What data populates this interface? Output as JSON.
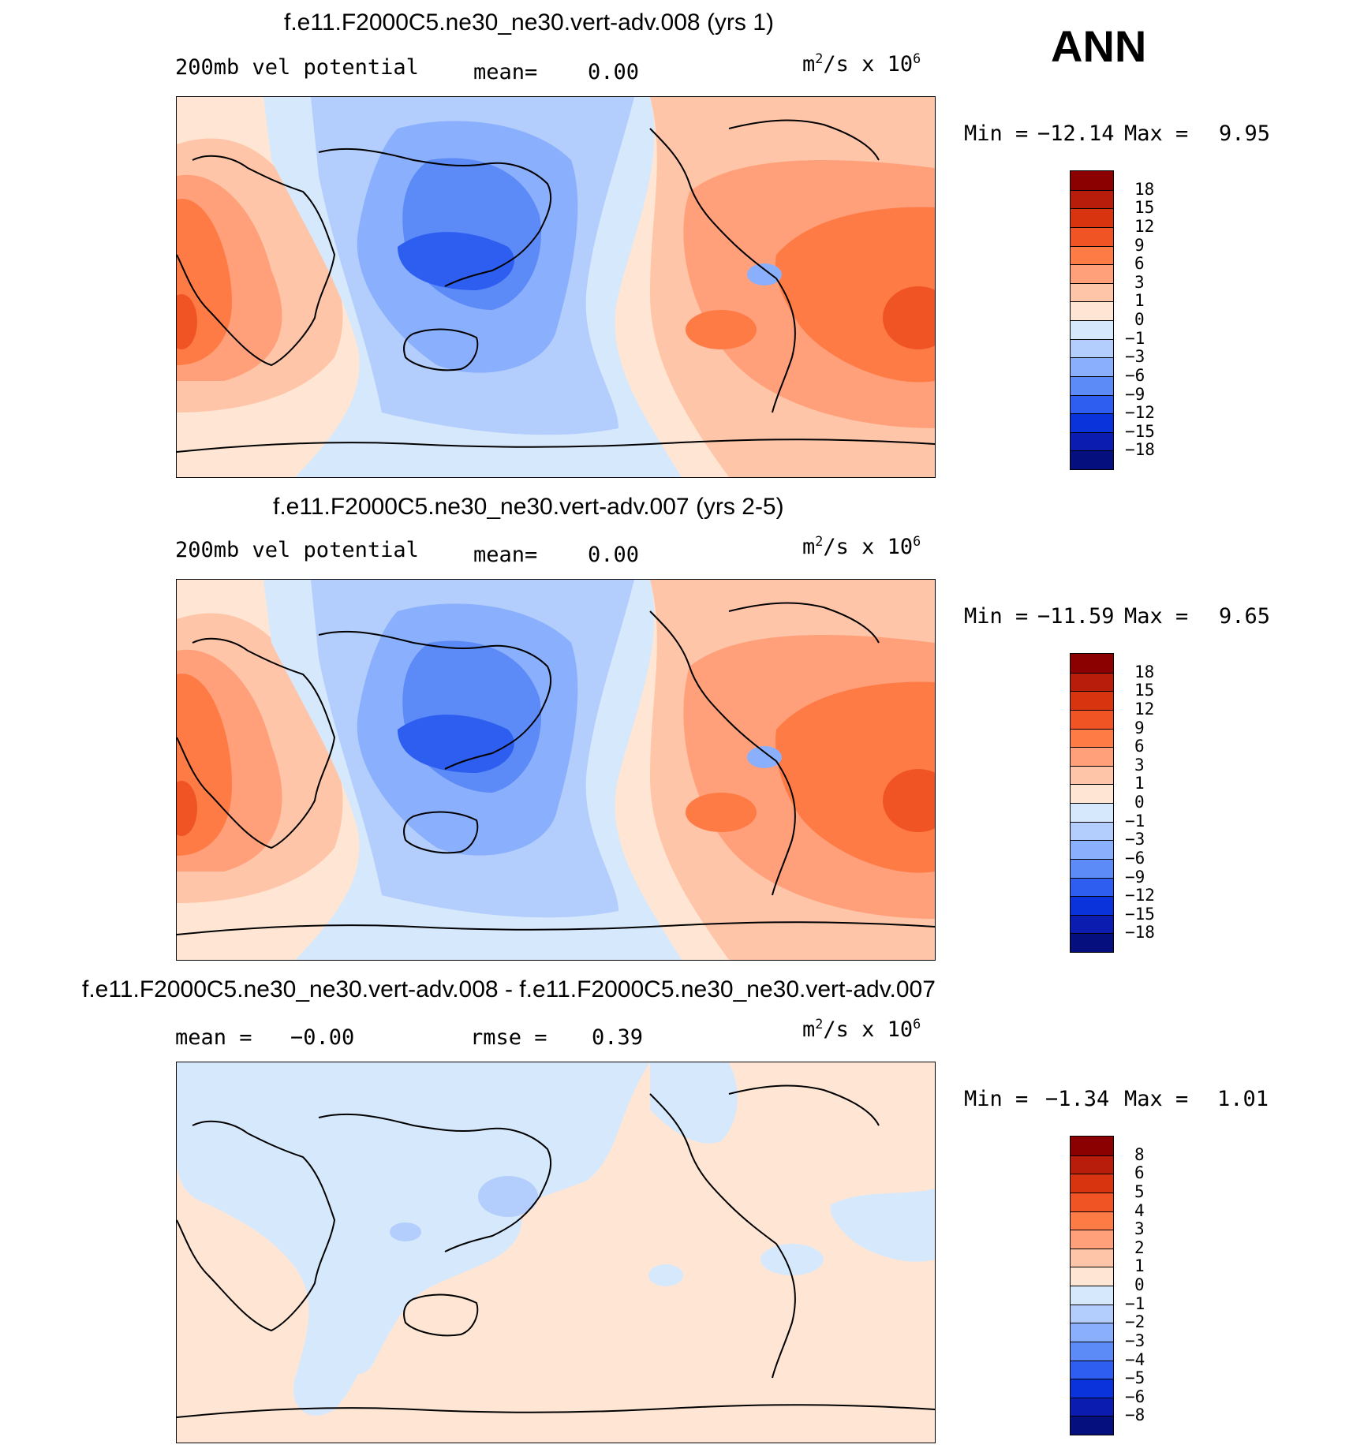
{
  "season": "ANN",
  "panels": [
    {
      "title": "f.e11.F2000C5.ne30_ne30.vert-adv.008 (yrs 1)",
      "left_text": "200mb vel potential",
      "stat_label": "mean=",
      "stat_value": "0.00",
      "rmse_label": "",
      "rmse_value": "",
      "units_base": "m",
      "units_sup1": "2",
      "units_mid": "/s x 10",
      "units_sup2": "6",
      "min_label": "Min =",
      "min_value": "−12.14",
      "max_label": "Max =",
      "max_value": "9.95",
      "colorbar_labels": [
        "18",
        "15",
        "12",
        "9",
        "6",
        "3",
        "1",
        "0",
        "−1",
        "−3",
        "−6",
        "−9",
        "−12",
        "−15",
        "−18"
      ]
    },
    {
      "title": "f.e11.F2000C5.ne30_ne30.vert-adv.007 (yrs 2-5)",
      "left_text": "200mb vel potential",
      "stat_label": "mean=",
      "stat_value": "0.00",
      "rmse_label": "",
      "rmse_value": "",
      "units_base": "m",
      "units_sup1": "2",
      "units_mid": "/s x 10",
      "units_sup2": "6",
      "min_label": "Min =",
      "min_value": "−11.59",
      "max_label": "Max =",
      "max_value": "9.65",
      "colorbar_labels": [
        "18",
        "15",
        "12",
        "9",
        "6",
        "3",
        "1",
        "0",
        "−1",
        "−3",
        "−6",
        "−9",
        "−12",
        "−15",
        "−18"
      ]
    },
    {
      "title": "f.e11.F2000C5.ne30_ne30.vert-adv.008 - f.e11.F2000C5.ne30_ne30.vert-adv.007",
      "left_text": "",
      "stat_label": "mean =",
      "stat_value": "−0.00",
      "rmse_label": "rmse =",
      "rmse_value": "0.39",
      "units_base": "m",
      "units_sup1": "2",
      "units_mid": "/s x 10",
      "units_sup2": "6",
      "min_label": "Min =",
      "min_value": "−1.34",
      "max_label": "Max =",
      "max_value": "1.01",
      "colorbar_labels": [
        "8",
        "6",
        "5",
        "4",
        "3",
        "2",
        "1",
        "0",
        "−1",
        "−2",
        "−3",
        "−4",
        "−5",
        "−6",
        "−8"
      ]
    }
  ],
  "colorbar_colors": [
    "#8b0000",
    "#b81c0a",
    "#d83410",
    "#f05424",
    "#ff7b45",
    "#ffa07a",
    "#ffc5a8",
    "#ffe6d4",
    "#d6e8fc",
    "#b3cefc",
    "#8aaffc",
    "#5c8af7",
    "#2d5ef0",
    "#0a33dc",
    "#0a1db0",
    "#050f7e"
  ],
  "chart_data": [
    {
      "type": "heatmap",
      "title": "f.e11.F2000C5.ne30_ne30.vert-adv.008 (yrs 1)",
      "variable": "200mb vel potential",
      "units": "m2/s x 106",
      "mean": 0.0,
      "min": -12.14,
      "max": 9.95,
      "levels": [
        -18,
        -15,
        -12,
        -9,
        -6,
        -3,
        -1,
        0,
        1,
        3,
        6,
        9,
        12,
        15,
        18
      ]
    },
    {
      "type": "heatmap",
      "title": "f.e11.F2000C5.ne30_ne30.vert-adv.007 (yrs 2-5)",
      "variable": "200mb vel potential",
      "units": "m2/s x 106",
      "mean": 0.0,
      "min": -11.59,
      "max": 9.65,
      "levels": [
        -18,
        -15,
        -12,
        -9,
        -6,
        -3,
        -1,
        0,
        1,
        3,
        6,
        9,
        12,
        15,
        18
      ]
    },
    {
      "type": "heatmap",
      "title": "f.e11.F2000C5.ne30_ne30.vert-adv.008 - f.e11.F2000C5.ne30_ne30.vert-adv.007",
      "units": "m2/s x 106",
      "mean": -0.0,
      "rmse": 0.39,
      "min": -1.34,
      "max": 1.01,
      "levels": [
        -8,
        -6,
        -5,
        -4,
        -3,
        -2,
        -1,
        0,
        1,
        2,
        3,
        4,
        5,
        6,
        8
      ]
    }
  ]
}
